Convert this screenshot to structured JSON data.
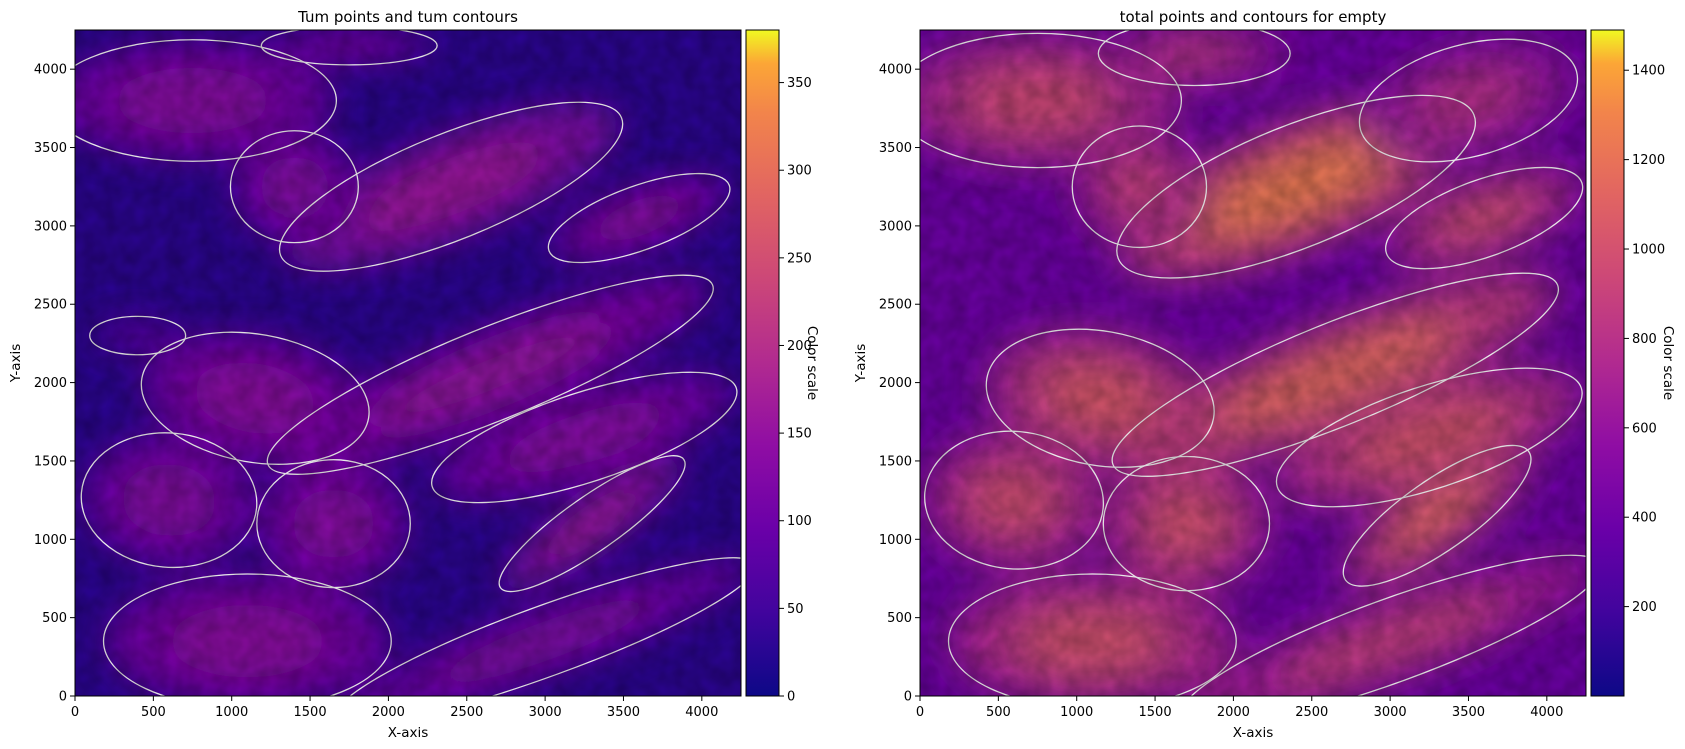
{
  "chart_data": [
    {
      "type": "heatmap",
      "title": "Tum points and tum contours",
      "xlabel": "X-axis",
      "ylabel": "Y-axis",
      "xlim": [
        0,
        4250
      ],
      "ylim": [
        0,
        4250
      ],
      "xticks": [
        0,
        500,
        1000,
        1500,
        2000,
        2500,
        3000,
        3500,
        4000
      ],
      "yticks": [
        0,
        500,
        1000,
        1500,
        2000,
        2500,
        3000,
        3500,
        4000
      ],
      "colormap": "plasma",
      "colorbar": {
        "label": "Color scale",
        "range": [
          0,
          380
        ],
        "ticks": [
          0,
          50,
          100,
          150,
          200,
          250,
          300,
          350
        ]
      },
      "contour_color": "#ffffff",
      "blobs": [
        {
          "cx": 1150,
          "cy": 1900,
          "rx": 720,
          "ry": 400,
          "rot": -10,
          "v": 140
        },
        {
          "cx": 600,
          "cy": 1250,
          "rx": 550,
          "ry": 420,
          "rot": -5,
          "v": 130
        },
        {
          "cx": 1650,
          "cy": 1100,
          "rx": 480,
          "ry": 400,
          "rot": 0,
          "v": 135
        },
        {
          "cx": 1100,
          "cy": 350,
          "rx": 900,
          "ry": 420,
          "rot": 0,
          "v": 140
        },
        {
          "cx": 2400,
          "cy": 3250,
          "rx": 1150,
          "ry": 330,
          "rot": 22,
          "v": 160
        },
        {
          "cx": 2650,
          "cy": 2050,
          "rx": 1500,
          "ry": 290,
          "rot": 22,
          "v": 150
        },
        {
          "cx": 3300,
          "cy": 1100,
          "rx": 700,
          "ry": 170,
          "rot": 35,
          "v": 165
        },
        {
          "cx": 3250,
          "cy": 1650,
          "rx": 1000,
          "ry": 280,
          "rot": 18,
          "v": 135
        },
        {
          "cx": 750,
          "cy": 3800,
          "rx": 900,
          "ry": 380,
          "rot": 0,
          "v": 135
        },
        {
          "cx": 3600,
          "cy": 3050,
          "rx": 600,
          "ry": 200,
          "rot": 20,
          "v": 140
        },
        {
          "cx": 3000,
          "cy": 350,
          "rx": 1400,
          "ry": 220,
          "rot": 20,
          "v": 125
        },
        {
          "cx": 1400,
          "cy": 3250,
          "rx": 400,
          "ry": 350,
          "rot": 0,
          "v": 130
        },
        {
          "cx": 1750,
          "cy": 4150,
          "rx": 550,
          "ry": 120,
          "rot": 0,
          "v": 120
        },
        {
          "cx": 400,
          "cy": 2300,
          "rx": 300,
          "ry": 120,
          "rot": 0,
          "v": 80
        }
      ]
    },
    {
      "type": "heatmap",
      "title": "total points and contours for empty",
      "xlabel": "X-axis",
      "ylabel": "Y-axis",
      "xlim": [
        0,
        4250
      ],
      "ylim": [
        0,
        4250
      ],
      "xticks": [
        0,
        500,
        1000,
        1500,
        2000,
        2500,
        3000,
        3500,
        4000
      ],
      "yticks": [
        0,
        500,
        1000,
        1500,
        2000,
        2500,
        3000,
        3500,
        4000
      ],
      "colormap": "plasma",
      "colorbar": {
        "label": "Color scale",
        "range": [
          0,
          1490
        ],
        "ticks": [
          200,
          400,
          600,
          800,
          1000,
          1200,
          1400
        ]
      },
      "contour_color": "#ffffff",
      "blobs": [
        {
          "cx": 1150,
          "cy": 1900,
          "rx": 720,
          "ry": 420,
          "rot": -10,
          "v": 1050
        },
        {
          "cx": 600,
          "cy": 1250,
          "rx": 560,
          "ry": 430,
          "rot": -5,
          "v": 980
        },
        {
          "cx": 1700,
          "cy": 1100,
          "rx": 520,
          "ry": 420,
          "rot": 0,
          "v": 1000
        },
        {
          "cx": 1100,
          "cy": 350,
          "rx": 900,
          "ry": 420,
          "rot": 0,
          "v": 1000
        },
        {
          "cx": 2400,
          "cy": 3250,
          "rx": 1200,
          "ry": 380,
          "rot": 22,
          "v": 1250
        },
        {
          "cx": 2650,
          "cy": 2050,
          "rx": 1500,
          "ry": 320,
          "rot": 22,
          "v": 1150
        },
        {
          "cx": 3300,
          "cy": 1150,
          "rx": 700,
          "ry": 220,
          "rot": 35,
          "v": 1150
        },
        {
          "cx": 3250,
          "cy": 1650,
          "rx": 1000,
          "ry": 320,
          "rot": 18,
          "v": 1050
        },
        {
          "cx": 750,
          "cy": 3800,
          "rx": 900,
          "ry": 420,
          "rot": 0,
          "v": 950
        },
        {
          "cx": 3600,
          "cy": 3050,
          "rx": 650,
          "ry": 240,
          "rot": 20,
          "v": 1000
        },
        {
          "cx": 3000,
          "cy": 350,
          "rx": 1400,
          "ry": 260,
          "rot": 20,
          "v": 900
        },
        {
          "cx": 1400,
          "cy": 3250,
          "rx": 420,
          "ry": 380,
          "rot": 0,
          "v": 900
        },
        {
          "cx": 1750,
          "cy": 4100,
          "rx": 600,
          "ry": 200,
          "rot": 0,
          "v": 850
        },
        {
          "cx": 3500,
          "cy": 3800,
          "rx": 700,
          "ry": 350,
          "rot": 15,
          "v": 800
        }
      ]
    }
  ]
}
